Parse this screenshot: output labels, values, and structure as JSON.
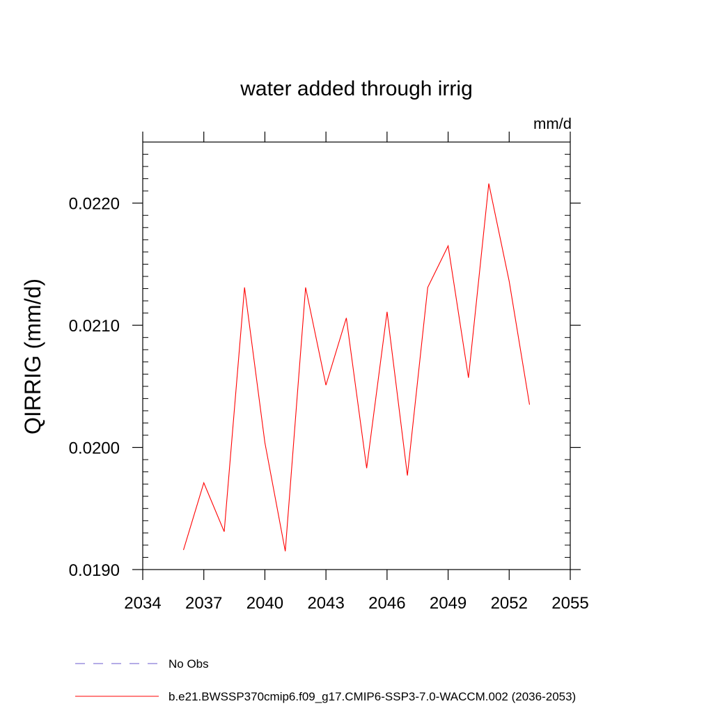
{
  "chart_data": {
    "type": "line",
    "title": "water added through irrig",
    "units": "mm/d",
    "xlabel": "",
    "ylabel": "QIRRIG  (mm/d)",
    "xlim": [
      2034,
      2055
    ],
    "ylim": [
      0.019,
      0.0225
    ],
    "x_ticks": [
      2034,
      2037,
      2040,
      2043,
      2046,
      2049,
      2052,
      2055
    ],
    "x_tick_labels": [
      "2034",
      "2037",
      "2040",
      "2043",
      "2046",
      "2049",
      "2052",
      "2055"
    ],
    "y_ticks": [
      0.019,
      0.02,
      0.021,
      0.022
    ],
    "y_tick_labels": [
      "0.0190",
      "0.0200",
      "0.0210",
      "0.0220"
    ],
    "series": [
      {
        "name": "b.e21.BWSSP370cmip6.f09_g17.CMIP6-SSP3-7.0-WACCM.002 (2036-2053)",
        "color": "#ff0000",
        "style": "solid",
        "x": [
          2036,
          2037,
          2038,
          2039,
          2040,
          2041,
          2042,
          2043,
          2044,
          2045,
          2046,
          2047,
          2048,
          2049,
          2050,
          2051,
          2052,
          2053
        ],
        "values": [
          0.01916,
          0.01971,
          0.01931,
          0.02131,
          0.02004,
          0.01915,
          0.02131,
          0.02051,
          0.02106,
          0.01983,
          0.02111,
          0.01977,
          0.02131,
          0.02165,
          0.02057,
          0.02216,
          0.02136,
          0.02035
        ]
      }
    ],
    "legend": [
      {
        "label": "No Obs",
        "color": "#6a5acd",
        "style": "dashed"
      },
      {
        "label": "b.e21.BWSSP370cmip6.f09_g17.CMIP6-SSP3-7.0-WACCM.002 (2036-2053)",
        "color": "#ff0000",
        "style": "solid"
      }
    ]
  }
}
